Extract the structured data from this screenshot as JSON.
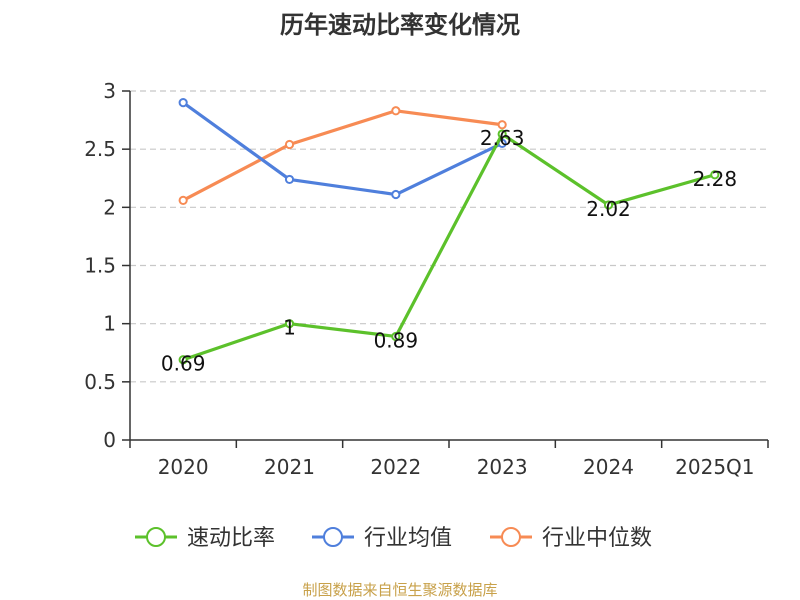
{
  "chart_data": {
    "type": "line",
    "title": "历年速动比率变化情况",
    "categories": [
      "2020",
      "2021",
      "2022",
      "2023",
      "2024",
      "2025Q1"
    ],
    "ylim": [
      0,
      3
    ],
    "yticks": [
      "0",
      "0.5",
      "1",
      "1.5",
      "2",
      "2.5",
      "3"
    ],
    "grid": true,
    "legend_position": "bottom",
    "series": [
      {
        "name": "速动比率",
        "color": "#5cc12b",
        "values": [
          0.69,
          1,
          0.89,
          2.63,
          2.02,
          2.28
        ],
        "labels": [
          "0.69",
          "1",
          "0.89",
          "2.63",
          "2.02",
          "2.28"
        ]
      },
      {
        "name": "行业均值",
        "color": "#4f7fdc",
        "values": [
          2.9,
          2.24,
          2.11,
          2.55,
          null,
          null
        ]
      },
      {
        "name": "行业中位数",
        "color": "#f78b54",
        "values": [
          2.06,
          2.54,
          2.83,
          2.71,
          null,
          null
        ]
      }
    ]
  },
  "source": "制图数据来自恒生聚源数据库"
}
